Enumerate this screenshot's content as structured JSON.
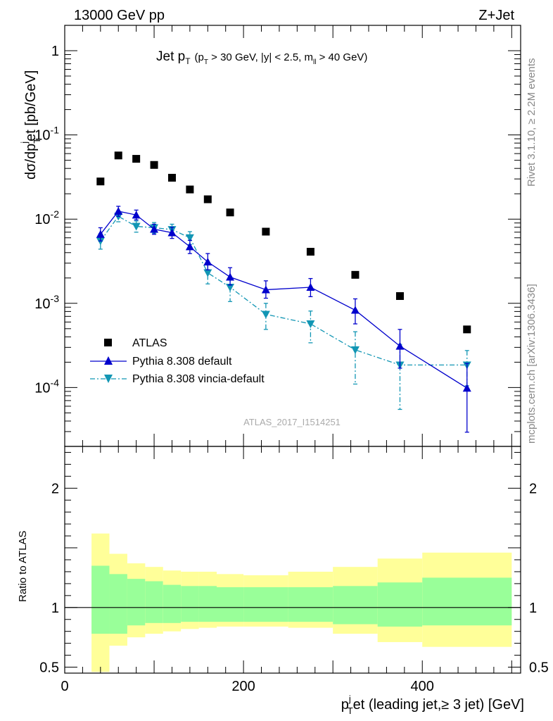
{
  "header": {
    "left": "13000 GeV pp",
    "right": "Z+Jet"
  },
  "side_labels": {
    "rivet": "Rivet 3.1.10, ≥ 2.2M events",
    "mcplots": "mcplots.cern.ch [arXiv:1306.3436]"
  },
  "plot_title": {
    "main": "Jet p",
    "main_sub": "T",
    "cuts_a": "(p",
    "cuts_a_sub": "T",
    "cuts_b": " > 30 GeV, |y| < 2.5, m",
    "cuts_b_sub": "ll",
    "cuts_c": " > 40 GeV)"
  },
  "watermark": "ATLAS_2017_I1514251",
  "ylabel_main": "dσ/dp",
  "ylabel_main_sub": "T",
  "ylabel_main_sup": "j",
  "ylabel_main_rest": "et [pb/GeV]",
  "ylabel_ratio": "Ratio to ATLAS",
  "xlabel": {
    "a": "p",
    "sup": "j",
    "sub": "T",
    "b": "et (leading jet,≥ 3 jet) [GeV]"
  },
  "colors": {
    "data": "#000000",
    "default": "#0000cc",
    "vincia": "#1296b4",
    "band_inner": "#99ff99",
    "band_outer": "#ffff99"
  },
  "chart_data": [
    {
      "type": "scatter",
      "panel": "main",
      "y_scale": "log",
      "xlim": [
        0,
        510
      ],
      "ylim": [
        2e-05,
        2
      ],
      "y_tick_labels": [
        "10^-4",
        "10^-3",
        "10^-2",
        "10^-1",
        "1"
      ],
      "legend_placement": "bottom-left",
      "series": [
        {
          "name": "ATLAS",
          "style": "square-marker",
          "x": [
            40,
            60,
            80,
            100,
            120,
            140,
            160,
            185,
            225,
            275,
            325,
            375,
            450
          ],
          "y": [
            0.028,
            0.057,
            0.052,
            0.044,
            0.031,
            0.0225,
            0.0172,
            0.012,
            0.0071,
            0.0041,
            0.00218,
            0.00122,
            0.00049
          ]
        },
        {
          "name": "Pythia 8.308 default",
          "style": "solid-line-triangle-up",
          "x": [
            40,
            60,
            80,
            100,
            120,
            140,
            160,
            185,
            225,
            275,
            325,
            375,
            450
          ],
          "y": [
            0.0066,
            0.0124,
            0.0112,
            0.0076,
            0.0069,
            0.0047,
            0.0031,
            0.00205,
            0.00145,
            0.00155,
            0.00083,
            0.00031,
            9.85e-05
          ],
          "yerr_low": [
            0.0011,
            0.0016,
            0.0014,
            0.001,
            0.001,
            0.0008,
            0.0006,
            0.0004,
            0.0003,
            0.00035,
            0.00026,
            0.00014,
            6.9e-05
          ],
          "yerr_high": [
            0.0013,
            0.0018,
            0.0016,
            0.0011,
            0.0011,
            0.0009,
            0.0008,
            0.0006,
            0.0004,
            0.00042,
            0.0003,
            0.00018,
            9.5e-05
          ]
        },
        {
          "name": "Pythia 8.308 vincia-default",
          "style": "dashdot-line-triangle-down",
          "x": [
            40,
            60,
            80,
            100,
            120,
            140,
            160,
            185,
            225,
            275,
            325,
            375,
            450
          ],
          "y": [
            0.0055,
            0.0108,
            0.0082,
            0.0079,
            0.0075,
            0.006,
            0.0023,
            0.00155,
            0.00074,
            0.00057,
            0.00028,
            0.000185,
            0.000185
          ],
          "yerr_low": [
            0.0011,
            0.0015,
            0.0012,
            0.0011,
            0.0011,
            0.001,
            0.0006,
            0.0005,
            0.00025,
            0.00023,
            0.00017,
            0.00013,
            8e-05
          ],
          "yerr_high": [
            0.0012,
            0.0016,
            0.0013,
            0.0012,
            0.0012,
            0.0011,
            0.0006,
            0.0005,
            0.00026,
            0.00024,
            0.00018,
            0.00014,
            9e-05
          ]
        }
      ]
    },
    {
      "type": "area",
      "panel": "ratio",
      "xlim": [
        0,
        510
      ],
      "ylim": [
        0.45,
        2.35
      ],
      "y_tick_labels": [
        "0.5",
        "1",
        "2"
      ],
      "x_tick_labels": [
        "0",
        "200",
        "400"
      ],
      "reference_line": 1,
      "bins": [
        [
          30,
          50
        ],
        [
          50,
          70
        ],
        [
          70,
          90
        ],
        [
          90,
          110
        ],
        [
          110,
          130
        ],
        [
          130,
          150
        ],
        [
          150,
          170
        ],
        [
          170,
          200
        ],
        [
          200,
          250
        ],
        [
          250,
          300
        ],
        [
          300,
          350
        ],
        [
          350,
          400
        ],
        [
          400,
          500
        ]
      ],
      "inner_band": {
        "low": [
          0.78,
          0.78,
          0.85,
          0.87,
          0.87,
          0.88,
          0.88,
          0.88,
          0.88,
          0.88,
          0.86,
          0.84,
          0.85
        ],
        "high": [
          1.35,
          1.28,
          1.24,
          1.22,
          1.19,
          1.18,
          1.18,
          1.17,
          1.17,
          1.17,
          1.18,
          1.21,
          1.25
        ]
      },
      "outer_band": {
        "low": [
          0.46,
          0.68,
          0.75,
          0.78,
          0.8,
          0.82,
          0.83,
          0.84,
          0.84,
          0.83,
          0.78,
          0.71,
          0.67
        ],
        "high": [
          1.62,
          1.45,
          1.37,
          1.34,
          1.31,
          1.3,
          1.3,
          1.28,
          1.27,
          1.3,
          1.34,
          1.41,
          1.46
        ]
      }
    }
  ]
}
